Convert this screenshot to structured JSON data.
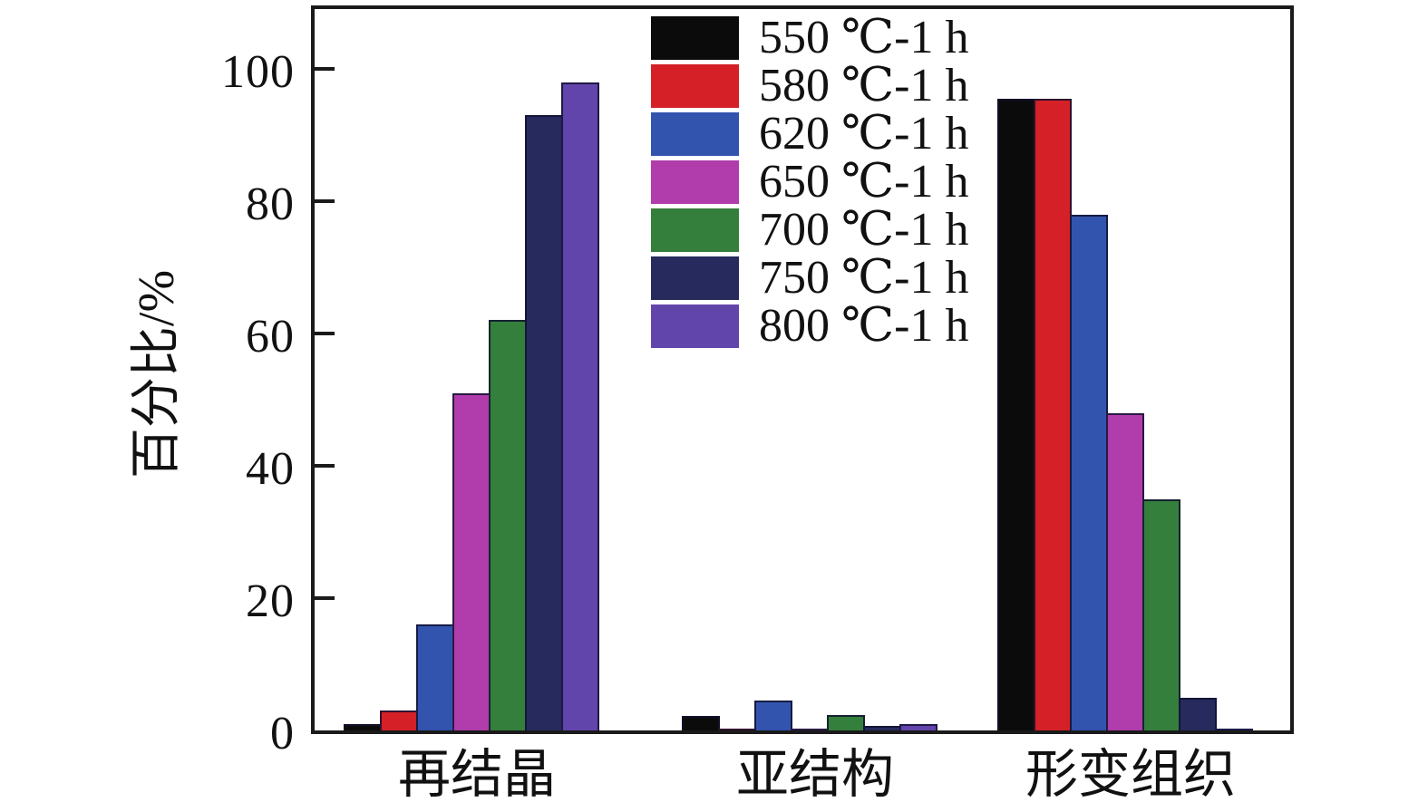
{
  "chart_data": {
    "type": "bar",
    "title": "",
    "xlabel": "",
    "ylabel": "百分比/%",
    "ylim": [
      0,
      109
    ],
    "yticks": [
      0,
      20,
      40,
      60,
      80,
      100
    ],
    "grid": false,
    "legend_position": "upper center inside plot",
    "categories": [
      "再结晶",
      "亚结构",
      "形变组织"
    ],
    "series": [
      {
        "name": "550 ℃-1 h",
        "color": "#0b0b0b",
        "values": [
          1,
          2.2,
          95.5
        ]
      },
      {
        "name": "580 ℃-1 h",
        "color": "#d42026",
        "values": [
          3,
          0.2,
          95.5
        ]
      },
      {
        "name": "620 ℃-1 h",
        "color": "#3354ae",
        "values": [
          16,
          4.5,
          78
        ]
      },
      {
        "name": "650 ℃-1 h",
        "color": "#b13cab",
        "values": [
          51,
          0.3,
          48
        ]
      },
      {
        "name": "700 ℃-1 h",
        "color": "#357f3c",
        "values": [
          62,
          2.4,
          35
        ]
      },
      {
        "name": "750 ℃-1 h",
        "color": "#272a5c",
        "values": [
          93,
          0.7,
          5
        ]
      },
      {
        "name": "800 ℃-1 h",
        "color": "#6245ab",
        "values": [
          98,
          1,
          0.3
        ]
      }
    ]
  },
  "colors": {
    "frame": "#1a1a1a",
    "background": "#ffffff",
    "text": "#111111"
  }
}
